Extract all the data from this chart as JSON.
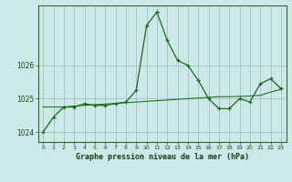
{
  "x": [
    0,
    1,
    2,
    3,
    4,
    5,
    6,
    7,
    8,
    9,
    10,
    11,
    12,
    13,
    14,
    15,
    16,
    17,
    18,
    19,
    20,
    21,
    22,
    23
  ],
  "y_main": [
    1024.0,
    1024.45,
    1024.75,
    1024.75,
    1024.85,
    1024.8,
    1024.8,
    1024.85,
    1024.9,
    1025.25,
    1027.2,
    1027.6,
    1026.75,
    1026.15,
    1026.0,
    1025.55,
    1025.0,
    1024.7,
    1024.7,
    1025.0,
    1024.9,
    1025.45,
    1025.6,
    1025.3
  ],
  "y_smooth": [
    1024.75,
    1024.75,
    1024.75,
    1024.78,
    1024.8,
    1024.82,
    1024.84,
    1024.86,
    1024.88,
    1024.9,
    1024.92,
    1024.94,
    1024.96,
    1024.98,
    1025.0,
    1025.02,
    1025.04,
    1025.06,
    1025.06,
    1025.07,
    1025.08,
    1025.1,
    1025.2,
    1025.28
  ],
  "line_color": "#1a6b1a",
  "bg_color": "#cce8e8",
  "grid_color": "#99bbbb",
  "title": "Graphe pression niveau de la mer (hPa)",
  "ylim": [
    1023.7,
    1027.8
  ],
  "yticks": [
    1024,
    1025,
    1026
  ],
  "xlim": [
    -0.5,
    23.5
  ],
  "xticks": [
    0,
    1,
    2,
    3,
    4,
    5,
    6,
    7,
    8,
    9,
    10,
    11,
    12,
    13,
    14,
    15,
    16,
    17,
    18,
    19,
    20,
    21,
    22,
    23
  ]
}
